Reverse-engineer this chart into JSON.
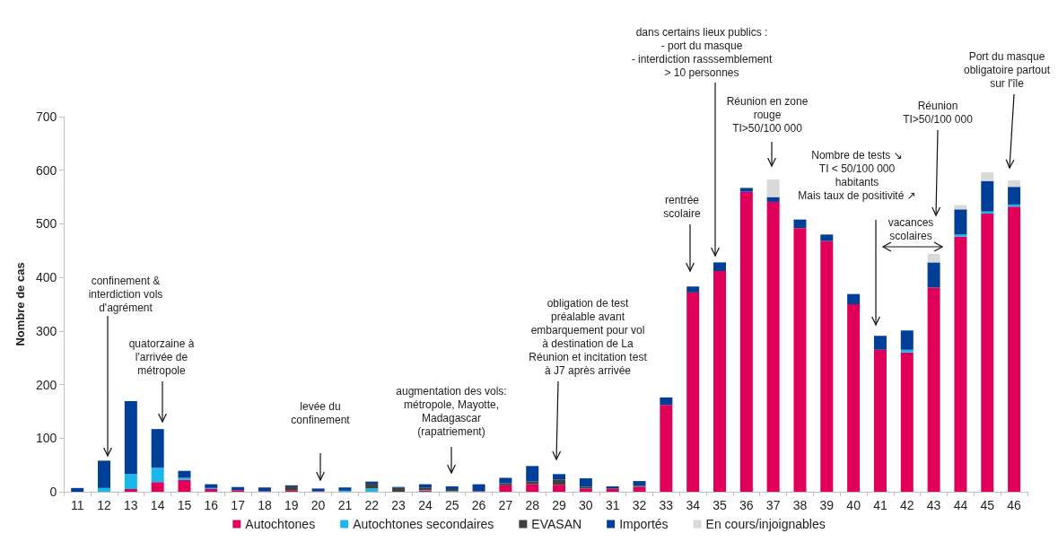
{
  "chart_data": {
    "type": "bar",
    "stacked": true,
    "ylabel": "Nombre de cas",
    "categories": [
      "11",
      "12",
      "13",
      "14",
      "15",
      "16",
      "17",
      "18",
      "19",
      "20",
      "21",
      "22",
      "23",
      "24",
      "25",
      "26",
      "27",
      "28",
      "29",
      "30",
      "31",
      "32",
      "33",
      "34",
      "35",
      "36",
      "37",
      "38",
      "39",
      "40",
      "41",
      "42",
      "43",
      "44",
      "45",
      "46"
    ],
    "series": [
      {
        "name": "Autochtones",
        "color": "#e0005a",
        "values": [
          0,
          0,
          5,
          18,
          22,
          5,
          3,
          1,
          2,
          1,
          0,
          0,
          0,
          2,
          0,
          1,
          12,
          14,
          13,
          6,
          5,
          9,
          162,
          372,
          412,
          560,
          541,
          492,
          468,
          350,
          265,
          260,
          381,
          476,
          519,
          532
        ]
      },
      {
        "name": "Autochtones secondaires",
        "color": "#1ab7ea",
        "values": [
          0,
          7,
          28,
          27,
          4,
          2,
          0,
          0,
          0,
          0,
          2,
          6,
          0,
          1,
          1,
          0,
          0,
          0,
          0,
          0,
          0,
          0,
          0,
          0,
          0,
          0,
          0,
          0,
          0,
          0,
          0,
          5,
          0,
          4,
          4,
          4
        ]
      },
      {
        "name": "EVASAN",
        "color": "#404040",
        "values": [
          0,
          0,
          0,
          0,
          0,
          0,
          0,
          0,
          8,
          0,
          0,
          9,
          7,
          5,
          4,
          0,
          4,
          5,
          10,
          3,
          1,
          2,
          0,
          0,
          0,
          0,
          0,
          0,
          0,
          0,
          0,
          0,
          0,
          0,
          0,
          0
        ]
      },
      {
        "name": "Importés",
        "color": "#003f98",
        "values": [
          7,
          51,
          136,
          72,
          13,
          7,
          6,
          7,
          2,
          5,
          6,
          4,
          2,
          6,
          5,
          13,
          10,
          29,
          10,
          16,
          4,
          9,
          14,
          11,
          16,
          7,
          9,
          16,
          12,
          19,
          26,
          36,
          47,
          47,
          57,
          33
        ]
      },
      {
        "name": "En cours/injoignables",
        "color": "#d9d9d9",
        "values": [
          0,
          0,
          0,
          0,
          0,
          0,
          0,
          0,
          0,
          0,
          0,
          0,
          0,
          0,
          0,
          0,
          0,
          0,
          0,
          0,
          0,
          0,
          0,
          0,
          0,
          0,
          33,
          0,
          0,
          0,
          0,
          0,
          16,
          8,
          16,
          12
        ]
      }
    ],
    "ylim": [
      0,
      700
    ],
    "yticks": [
      0,
      100,
      200,
      300,
      400,
      500,
      600,
      700
    ],
    "grid": false,
    "legend": "bottom",
    "annotations": [
      "confinement &\ninterdiction vols\nd'agrément",
      "quatorzaine à\nl'arrivée de\nmétropole",
      "levée du\nconfinement",
      "augmentation des vols:\nmétropole, Mayotte,\nMadagascar\n(rapatriement)",
      "obligation de test\npréalable avant\nembarquement pour vol\nà destination de La\nRéunion et incitation test\nà J7 après arrivée",
      "rentrée\nscolaire",
      "dans certains lieux publics :\n- port du masque\n- interdiction rasssemblement\n> 10 personnes",
      "Réunion en zone\nrouge\nTI>50/100 000",
      "Nombre de tests ↘\nTI < 50/100 000\nhabitants\nMais taux de positivité ↗",
      "vacances\nscolaires",
      "Réunion\nTI>50/100 000",
      "Port du masque\nobligatoire partout\nsur l'île"
    ]
  }
}
